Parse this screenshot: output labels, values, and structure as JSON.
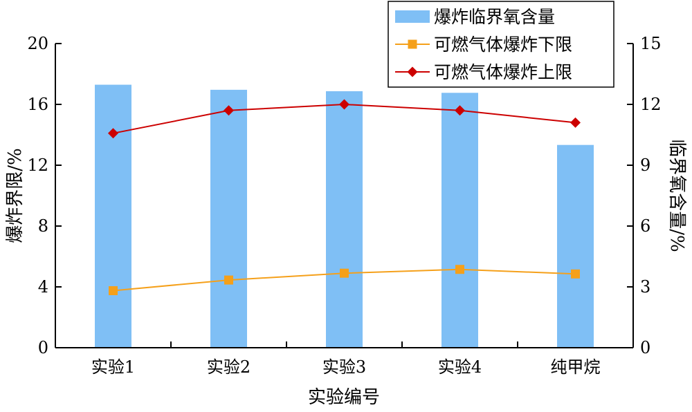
{
  "chart_data": {
    "type": "bar",
    "categories": [
      "实验1",
      "实验2",
      "实验3",
      "实验4",
      "纯甲烷"
    ],
    "xlabel": "实验编号",
    "ylabel_left": "爆炸界限/%",
    "ylabel_right": "临界氧含量/%",
    "ylim_left": [
      0,
      20
    ],
    "ylim_right": [
      0,
      15
    ],
    "yticks_left": [
      0,
      4,
      8,
      12,
      16,
      20
    ],
    "yticks_right": [
      0,
      3,
      6,
      9,
      12,
      15
    ],
    "grid": false,
    "legend_position": "top-right",
    "series": [
      {
        "name": "爆炸临界氧含量",
        "type": "bar",
        "axis": "right",
        "color": "#7fbff5",
        "values": [
          12.97,
          12.72,
          12.65,
          12.57,
          10.0
        ]
      },
      {
        "name": "可燃气体爆炸下限",
        "type": "line",
        "axis": "left",
        "color": "#f5a01a",
        "marker": "square",
        "values": [
          3.75,
          4.45,
          4.9,
          5.15,
          4.85
        ]
      },
      {
        "name": "可燃气体爆炸上限",
        "type": "line",
        "axis": "left",
        "color": "#cc0000",
        "marker": "diamond",
        "values": [
          14.1,
          15.6,
          16.0,
          15.6,
          14.8
        ]
      }
    ]
  }
}
